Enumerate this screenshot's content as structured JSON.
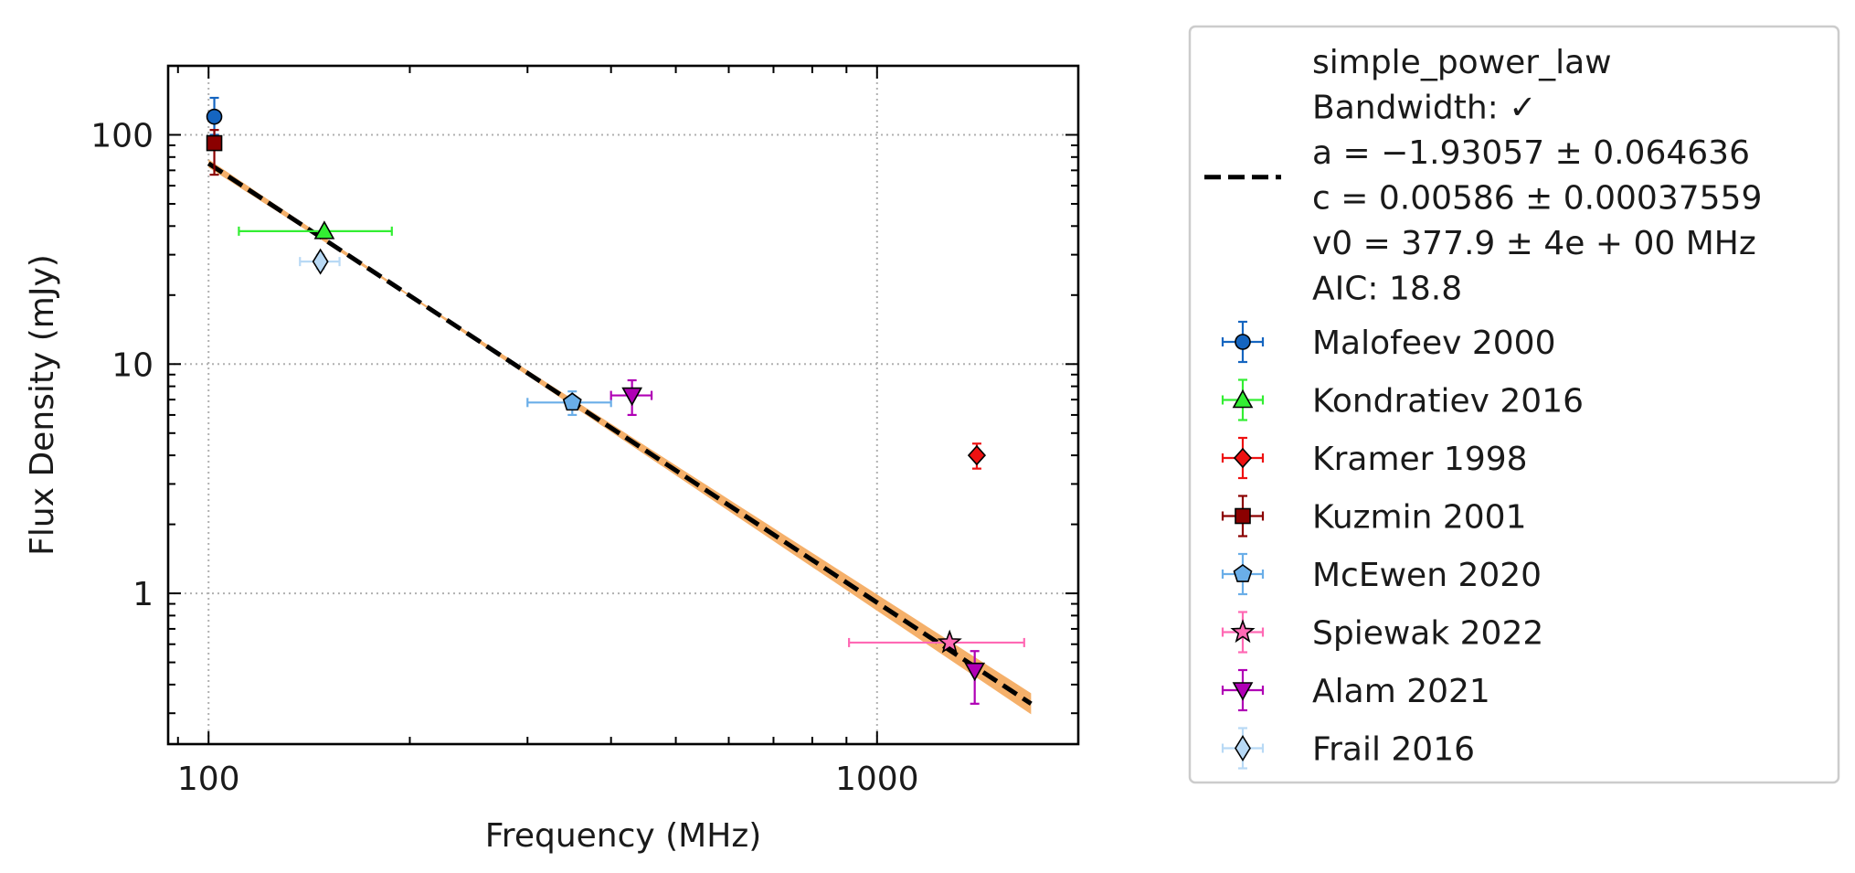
{
  "chart_data": {
    "type": "scatter",
    "xlabel": "Frequency (MHz)",
    "ylabel": "Flux Density (mJy)",
    "x_scale": "log",
    "y_scale": "log",
    "xlim": [
      87,
      2000
    ],
    "ylim": [
      0.22,
      200
    ],
    "grid": true,
    "legend_position": "outside-right",
    "x_ticks": [
      {
        "value": 100,
        "label": "100"
      },
      {
        "value": 1000,
        "label": "1000"
      }
    ],
    "y_ticks": [
      {
        "value": 1,
        "label": "1"
      },
      {
        "value": 10,
        "label": "10"
      },
      {
        "value": 100,
        "label": "100"
      }
    ],
    "fit": {
      "name": "simple_power_law",
      "legend_lines": [
        "simple_power_law",
        "Bandwidth: ✓",
        "a = −1.93057 ± 0.064636",
        "c = 0.00586 ± 0.00037559",
        "v0 = 377.9 ± 4e + 00 MHz",
        "AIC: 18.8"
      ],
      "a": -1.93057,
      "c": 0.00586,
      "v0": 377.9,
      "x_range": [
        100,
        1700
      ],
      "y_endpoints": [
        75,
        0.33
      ],
      "band_color": "#f5b06a",
      "line_color": "#000000"
    },
    "series": [
      {
        "name": "Malofeev 2000",
        "marker": "circle",
        "color": "#1565c0",
        "ecolor": "#1565c0",
        "points": [
          {
            "x": 102,
            "y": 120,
            "yerr_lo": 100,
            "yerr_hi": 145
          }
        ]
      },
      {
        "name": "Kondratiev 2016",
        "marker": "triangle-up",
        "color": "#33ee33",
        "ecolor": "#33ee33",
        "points": [
          {
            "x": 149,
            "y": 38,
            "xerr_lo": 111,
            "xerr_hi": 188
          }
        ]
      },
      {
        "name": "Kramer 1998",
        "marker": "diamond",
        "color": "#ee1111",
        "ecolor": "#ee1111",
        "points": [
          {
            "x": 1410,
            "y": 4.0,
            "yerr_lo": 3.5,
            "yerr_hi": 4.5
          }
        ]
      },
      {
        "name": "Kuzmin 2001",
        "marker": "square",
        "color": "#8b0000",
        "ecolor": "#8b0000",
        "points": [
          {
            "x": 102,
            "y": 92,
            "yerr_lo": 67,
            "yerr_hi": 105
          }
        ]
      },
      {
        "name": "McEwen 2020",
        "marker": "pentagon",
        "color": "#6aaee8",
        "ecolor": "#6aaee8",
        "points": [
          {
            "x": 350,
            "y": 6.8,
            "xerr_lo": 300,
            "xerr_hi": 400,
            "yerr_lo": 6.0,
            "yerr_hi": 7.6
          }
        ]
      },
      {
        "name": "Spiewak 2022",
        "marker": "star",
        "color": "#ff69b4",
        "ecolor": "#ff69b4",
        "points": [
          {
            "x": 1284,
            "y": 0.61,
            "xerr_lo": 908,
            "xerr_hi": 1660
          }
        ]
      },
      {
        "name": "Alam 2021",
        "marker": "triangle-down",
        "color": "#b000b5",
        "ecolor": "#b000b5",
        "points": [
          {
            "x": 430,
            "y": 7.3,
            "xerr_lo": 400,
            "xerr_hi": 460,
            "yerr_lo": 6.0,
            "yerr_hi": 8.5
          },
          {
            "x": 1400,
            "y": 0.46,
            "yerr_lo": 0.33,
            "yerr_hi": 0.56
          }
        ]
      },
      {
        "name": "Frail 2016",
        "marker": "thin-diamond",
        "color": "#b8d9f5",
        "ecolor": "#b8d9f5",
        "points": [
          {
            "x": 147,
            "y": 28,
            "xerr_lo": 137,
            "xerr_hi": 157,
            "yerr_lo": 26,
            "yerr_hi": 30
          }
        ]
      }
    ]
  }
}
